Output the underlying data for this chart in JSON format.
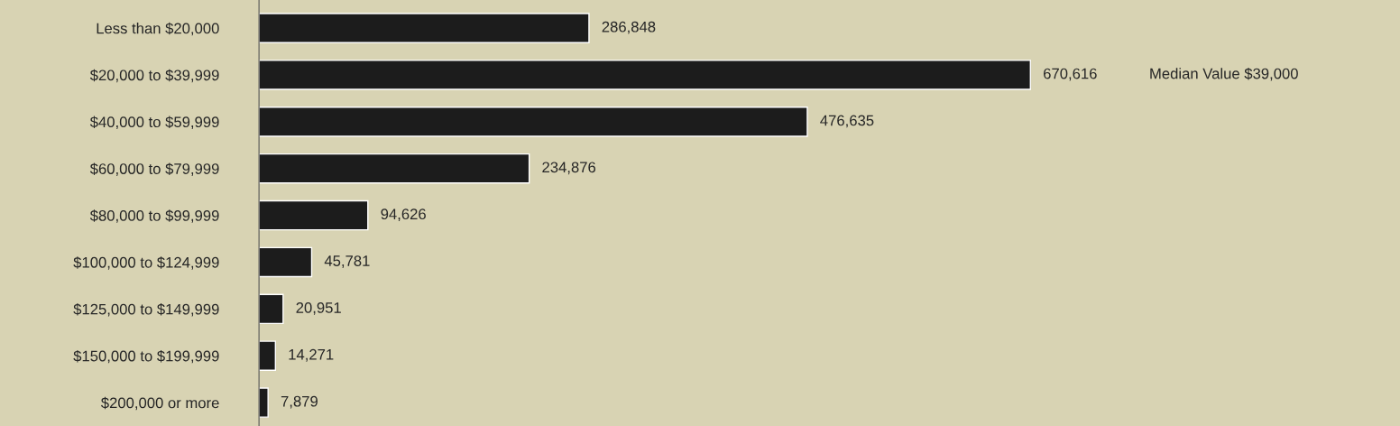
{
  "chart_data": {
    "type": "bar",
    "orientation": "horizontal",
    "categories": [
      "Less than $20,000",
      "$20,000 to $39,999",
      "$40,000 to $59,999",
      "$60,000 to $79,999",
      "$80,000 to $99,999",
      "$100,000 to $124,999",
      "$125,000 to $149,999",
      "$150,000 to $199,999",
      "$200,000 or more"
    ],
    "values": [
      286848,
      670616,
      476635,
      234876,
      94626,
      45781,
      20951,
      14271,
      7879
    ],
    "value_labels": [
      "286,848",
      "670,616",
      "476,635",
      "234,876",
      "94,626",
      "45,781",
      "20,951",
      "14,271",
      "7,879"
    ],
    "color": "#1c1c1c",
    "tick_labels": "y",
    "grid": false,
    "legend": false,
    "annotations": [
      "Median Value $39,000"
    ]
  }
}
